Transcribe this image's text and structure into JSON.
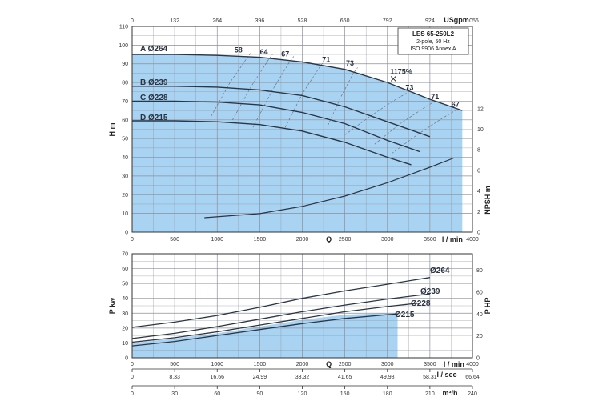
{
  "chart_data": [
    {
      "type": "line",
      "name_box": {
        "title": "LES 65-250L2",
        "line1": "2-pole, 50 Hz",
        "line2": "ISO 9906 Annex A"
      },
      "x": {
        "label": "Q",
        "unit": "l / min",
        "range": [
          0,
          4000
        ],
        "ticks": [
          "0",
          "500",
          "1000",
          "1500",
          "2000",
          "2500",
          "3000",
          "3500",
          "4000"
        ]
      },
      "x_top": {
        "unit": "USgpm",
        "ticks": [
          "0",
          "132",
          "264",
          "396",
          "528",
          "660",
          "792",
          "924",
          "1056"
        ]
      },
      "y": {
        "label": "H m",
        "range": [
          0,
          110
        ],
        "ticks": [
          "0",
          "10",
          "20",
          "30",
          "40",
          "50",
          "60",
          "70",
          "80",
          "90",
          "100",
          "110"
        ]
      },
      "y_right": {
        "label": "NPSH m",
        "range": [
          0,
          12
        ],
        "ticks": [
          "0",
          "2",
          "4",
          "6",
          "8",
          "10",
          "12"
        ]
      },
      "grid": true,
      "series": [
        {
          "name": "A Ø264",
          "x": [
            0,
            500,
            1000,
            1500,
            2000,
            2500,
            3000,
            3500,
            3880
          ],
          "values": [
            95,
            95,
            94.5,
            93.5,
            91,
            87,
            80,
            71,
            65
          ]
        },
        {
          "name": "B Ø239",
          "x": [
            0,
            500,
            1000,
            1500,
            2000,
            2500,
            3000,
            3500
          ],
          "values": [
            78,
            78,
            77.5,
            76,
            73,
            67,
            59,
            51
          ]
        },
        {
          "name": "C Ø228",
          "x": [
            0,
            500,
            1000,
            1500,
            2000,
            2500,
            3000,
            3380
          ],
          "values": [
            70,
            70,
            69.5,
            68,
            64,
            58,
            49,
            43
          ]
        },
        {
          "name": "D Ø215",
          "x": [
            0,
            500,
            1000,
            1500,
            2000,
            2500,
            3000,
            3280
          ],
          "values": [
            59.5,
            59.5,
            59,
            57.5,
            54,
            48,
            40,
            36
          ]
        }
      ],
      "npsh": {
        "x": [
          850,
          1500,
          2000,
          2500,
          3000,
          3500,
          3780
        ],
        "values": [
          1.4,
          1.8,
          2.5,
          3.5,
          4.8,
          6.3,
          7.2
        ]
      },
      "efficiency_labels": [
        {
          "text": "58",
          "x": 1250,
          "y": 96
        },
        {
          "text": "64",
          "x": 1550,
          "y": 95
        },
        {
          "text": "67",
          "x": 1800,
          "y": 94
        },
        {
          "text": "71",
          "x": 2280,
          "y": 91
        },
        {
          "text": "73",
          "x": 2560,
          "y": 89
        },
        {
          "text": "73",
          "x": 3260,
          "y": 76
        },
        {
          "text": "71",
          "x": 3560,
          "y": 71
        },
        {
          "text": "67",
          "x": 3800,
          "y": 67
        }
      ],
      "efficiency_lines": [
        {
          "x": [
            930,
            1150,
            1350,
            1400
          ],
          "values": [
            62,
            80,
            93,
            96
          ]
        },
        {
          "x": [
            1180,
            1400,
            1600,
            1650
          ],
          "values": [
            60,
            78,
            92,
            95
          ]
        },
        {
          "x": [
            1420,
            1650,
            1850,
            1900
          ],
          "values": [
            56,
            76,
            91,
            94
          ]
        },
        {
          "x": [
            1800,
            2000,
            2200,
            2250
          ],
          "values": [
            56,
            74,
            88,
            91
          ]
        },
        {
          "x": [
            2300,
            2450,
            2600,
            2650
          ],
          "values": [
            57,
            72,
            85,
            88
          ]
        },
        {
          "x": [
            2500,
            2800,
            3100,
            3250
          ],
          "values": [
            52,
            62,
            71,
            75
          ]
        },
        {
          "x": [
            2850,
            3150,
            3450,
            3560
          ],
          "values": [
            47,
            58,
            67,
            70
          ]
        },
        {
          "x": [
            3050,
            3350,
            3650,
            3800
          ],
          "values": [
            42,
            52,
            61,
            65
          ]
        }
      ],
      "bep": {
        "label": "1175%",
        "x": 3070,
        "y": 82
      }
    },
    {
      "type": "line",
      "x": {
        "label": "Q",
        "unit": "l / min",
        "range": [
          0,
          4000
        ],
        "ticks": [
          "0",
          "500",
          "1000",
          "1500",
          "2000",
          "2500",
          "3000",
          "3500",
          "4000"
        ]
      },
      "y": {
        "label": "P kw",
        "range": [
          0,
          70
        ],
        "ticks": [
          "0",
          "10",
          "20",
          "30",
          "40",
          "50",
          "60",
          "70"
        ]
      },
      "y_right": {
        "label": "P HP",
        "range": [
          0,
          95
        ],
        "ticks": [
          "0",
          "20",
          "40",
          "60",
          "80"
        ]
      },
      "grid": true,
      "series": [
        {
          "name": "Ø264",
          "x": [
            0,
            500,
            1000,
            1500,
            2000,
            2500,
            3000,
            3500
          ],
          "values": [
            20.5,
            24,
            28.5,
            34,
            40,
            45,
            49.5,
            54
          ]
        },
        {
          "name": "Ø239",
          "x": [
            0,
            500,
            1000,
            1500,
            2000,
            2500,
            3000,
            3500
          ],
          "values": [
            13,
            16.5,
            21,
            26,
            31,
            35.5,
            39.5,
            43
          ]
        },
        {
          "name": "Ø228",
          "x": [
            0,
            500,
            1000,
            1500,
            2000,
            2500,
            3000,
            3400
          ],
          "values": [
            10.5,
            13.5,
            17.5,
            22,
            26.5,
            31,
            34.5,
            37
          ]
        },
        {
          "name": "Ø215",
          "x": [
            0,
            500,
            1000,
            1500,
            2000,
            2500,
            3000,
            3120
          ],
          "values": [
            8,
            11,
            15,
            19,
            23,
            26.5,
            29,
            29.5
          ]
        }
      ],
      "x_sec": {
        "unit": "l / sec",
        "ticks": [
          "0",
          "8.33",
          "16.66",
          "24.99",
          "33.32",
          "41.65",
          "49.98",
          "58.31",
          "66.64"
        ]
      },
      "x_m3h": {
        "unit": "m³/h",
        "ticks": [
          "0",
          "30",
          "60",
          "90",
          "120",
          "150",
          "180",
          "210",
          "240"
        ]
      }
    }
  ]
}
